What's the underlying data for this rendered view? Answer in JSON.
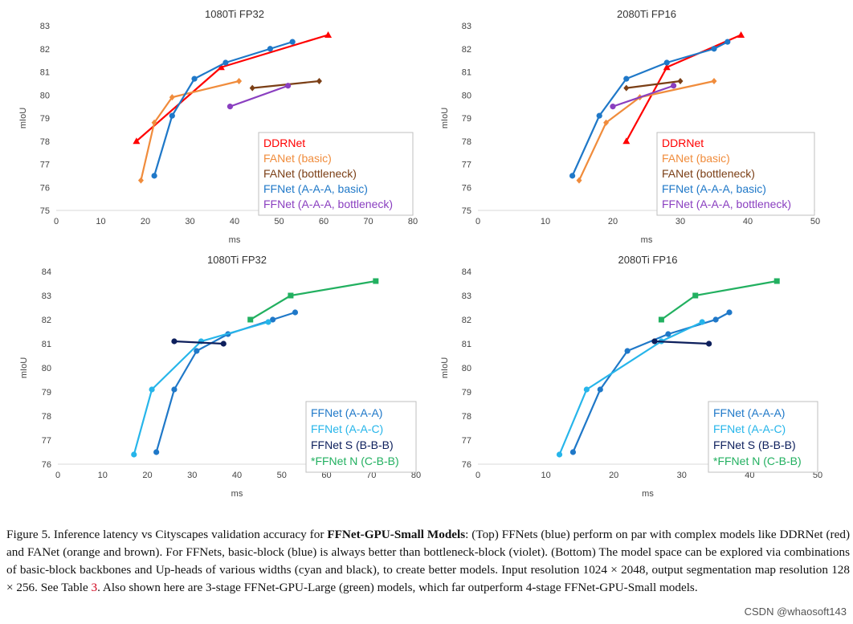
{
  "chart_data": [
    {
      "type": "line",
      "title": "1080Ti FP32",
      "xlabel": "ms",
      "ylabel": "mIoU",
      "xlim": [
        0,
        80
      ],
      "ylim": [
        75,
        83
      ],
      "xticks": [
        0,
        10,
        20,
        30,
        40,
        50,
        60,
        70,
        80
      ],
      "yticks": [
        75,
        76,
        77,
        78,
        79,
        80,
        81,
        82,
        83
      ],
      "series": [
        {
          "name": "DDRNet",
          "color": "#ff0000",
          "marker": "triangle",
          "x": [
            18,
            37,
            61
          ],
          "y": [
            78.0,
            81.2,
            82.6
          ]
        },
        {
          "name": "FANet (basic)",
          "color": "#f08c3c",
          "marker": "diamond",
          "x": [
            19,
            22,
            26,
            41
          ],
          "y": [
            76.3,
            78.8,
            79.9,
            80.6
          ]
        },
        {
          "name": "FANet (bottleneck)",
          "color": "#7b3f16",
          "marker": "diamond",
          "x": [
            44,
            59
          ],
          "y": [
            80.3,
            80.6
          ]
        },
        {
          "name": "FFNet (A-A-A, basic)",
          "color": "#1f78c8",
          "marker": "circle",
          "x": [
            22,
            26,
            31,
            38,
            48,
            53
          ],
          "y": [
            76.5,
            79.1,
            80.7,
            81.4,
            82.0,
            82.3
          ]
        },
        {
          "name": "FFNet (A-A-A, bottleneck)",
          "color": "#8a3fc0",
          "marker": "circle",
          "x": [
            39,
            52
          ],
          "y": [
            79.5,
            80.4
          ]
        }
      ]
    },
    {
      "type": "line",
      "title": "2080Ti FP16",
      "xlabel": "ms",
      "ylabel": "mIoU",
      "xlim": [
        0,
        50
      ],
      "ylim": [
        75,
        83
      ],
      "xticks": [
        0,
        10,
        20,
        30,
        40,
        50
      ],
      "yticks": [
        75,
        76,
        77,
        78,
        79,
        80,
        81,
        82,
        83
      ],
      "series": [
        {
          "name": "DDRNet",
          "color": "#ff0000",
          "marker": "triangle",
          "x": [
            22,
            28,
            39
          ],
          "y": [
            78.0,
            81.2,
            82.6
          ]
        },
        {
          "name": "FANet (basic)",
          "color": "#f08c3c",
          "marker": "diamond",
          "x": [
            15,
            19,
            24,
            35
          ],
          "y": [
            76.3,
            78.8,
            79.9,
            80.6
          ]
        },
        {
          "name": "FANet (bottleneck)",
          "color": "#7b3f16",
          "marker": "diamond",
          "x": [
            22,
            30
          ],
          "y": [
            80.3,
            80.6
          ]
        },
        {
          "name": "FFNet (A-A-A, basic)",
          "color": "#1f78c8",
          "marker": "circle",
          "x": [
            14,
            18,
            22,
            28,
            35,
            37
          ],
          "y": [
            76.5,
            79.1,
            80.7,
            81.4,
            82.0,
            82.3
          ]
        },
        {
          "name": "FFNet (A-A-A, bottleneck)",
          "color": "#8a3fc0",
          "marker": "circle",
          "x": [
            20,
            29
          ],
          "y": [
            79.5,
            80.4
          ]
        }
      ]
    },
    {
      "type": "line",
      "title": "1080Ti FP32",
      "xlabel": "ms",
      "ylabel": "mIoU",
      "xlim": [
        0,
        80
      ],
      "ylim": [
        76,
        84
      ],
      "xticks": [
        0,
        10,
        20,
        30,
        40,
        50,
        60,
        70,
        80
      ],
      "yticks": [
        76,
        77,
        78,
        79,
        80,
        81,
        82,
        83,
        84
      ],
      "series": [
        {
          "name": "FFNet (A-A-A)",
          "color": "#1f78c8",
          "marker": "circle",
          "x": [
            22,
            26,
            31,
            38,
            48,
            53
          ],
          "y": [
            76.5,
            79.1,
            80.7,
            81.4,
            82.0,
            82.3
          ]
        },
        {
          "name": "FFNet (A-A-C)",
          "color": "#26b5ea",
          "marker": "circle",
          "x": [
            17,
            21,
            32,
            47
          ],
          "y": [
            76.4,
            79.1,
            81.1,
            81.9
          ]
        },
        {
          "name": "FFNet S (B-B-B)",
          "color": "#0d1f5c",
          "marker": "circle",
          "x": [
            26,
            37
          ],
          "y": [
            81.1,
            81.0
          ]
        },
        {
          "name": "*FFNet N (C-B-B)",
          "color": "#22b060",
          "marker": "square",
          "x": [
            43,
            52,
            71
          ],
          "y": [
            82.0,
            83.0,
            83.6
          ]
        }
      ]
    },
    {
      "type": "line",
      "title": "2080Ti FP16",
      "xlabel": "ms",
      "ylabel": "mIoU",
      "xlim": [
        0,
        50
      ],
      "ylim": [
        76,
        84
      ],
      "xticks": [
        0,
        10,
        20,
        30,
        40,
        50
      ],
      "yticks": [
        76,
        77,
        78,
        79,
        80,
        81,
        82,
        83,
        84
      ],
      "series": [
        {
          "name": "FFNet (A-A-A)",
          "color": "#1f78c8",
          "marker": "circle",
          "x": [
            14,
            18,
            22,
            28,
            35,
            37
          ],
          "y": [
            76.5,
            79.1,
            80.7,
            81.4,
            82.0,
            82.3
          ]
        },
        {
          "name": "FFNet (A-A-C)",
          "color": "#26b5ea",
          "marker": "circle",
          "x": [
            12,
            16,
            27,
            33
          ],
          "y": [
            76.4,
            79.1,
            81.1,
            81.9
          ]
        },
        {
          "name": "FFNet S (B-B-B)",
          "color": "#0d1f5c",
          "marker": "circle",
          "x": [
            26,
            34
          ],
          "y": [
            81.1,
            81.0
          ]
        },
        {
          "name": "*FFNet N (C-B-B)",
          "color": "#22b060",
          "marker": "square",
          "x": [
            27,
            32,
            44
          ],
          "y": [
            82.0,
            83.0,
            83.6
          ]
        }
      ]
    }
  ],
  "caption": {
    "p1": "Figure 5. Inference latency vs Cityscapes validation accuracy for ",
    "bold": "FFNet-GPU-Small Models",
    "p2": ": (Top) FFNets (blue) perform on par with complex models like DDRNet (red) and FANet (orange and brown). For FFNets, basic-block (blue) is always better than bottleneck-block (violet). (Bottom) The model space can be explored via combinations of basic-block backbones and Up-heads of various widths (cyan and black), to create better models. Input resolution 1024 × 2048, output segmentation map resolution 128 × 256. See Table ",
    "ref": "3",
    "p3": ". Also shown here are 3-stage FFNet-GPU-Large (green) models, which far outperform 4-stage FFNet-GPU-Small models."
  },
  "watermark": "CSDN @whaosoft143"
}
